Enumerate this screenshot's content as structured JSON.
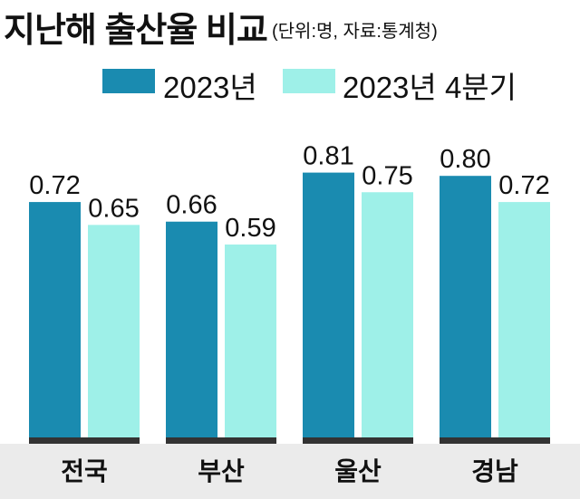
{
  "title": "지난해 출산율 비교",
  "subtitle": "(단위:명, 자료:통계청)",
  "colors": {
    "series1": "#1a8bb0",
    "series2": "#9ef0e8",
    "baseline": "#333333",
    "footer": "#ebebeb"
  },
  "chart_data": {
    "type": "bar",
    "title": "지난해 출산율 비교",
    "subtitle": "(단위:명, 자료:통계청)",
    "categories": [
      "전국",
      "부산",
      "울산",
      "경남"
    ],
    "series": [
      {
        "name": "2023년",
        "values": [
          0.72,
          0.66,
          0.81,
          0.8
        ]
      },
      {
        "name": "2023년 4분기",
        "values": [
          0.65,
          0.59,
          0.75,
          0.72
        ]
      }
    ],
    "value_labels": [
      [
        "0.72",
        "0.66",
        "0.81",
        "0.80"
      ],
      [
        "0.65",
        "0.59",
        "0.75",
        "0.72"
      ]
    ],
    "ylim": [
      0,
      1.0
    ],
    "grid": false,
    "legend": "top-center"
  }
}
